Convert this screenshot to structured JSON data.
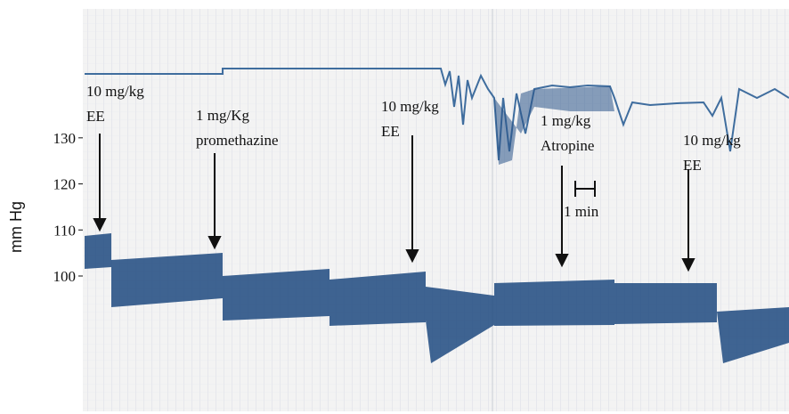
{
  "chart_data": {
    "type": "recording",
    "y_label": "mm Hg",
    "ylim": [
      71,
      158
    ],
    "yticks": [
      100,
      110,
      120,
      130
    ],
    "annotations": [
      {
        "dose": "10 mg/kg",
        "drug": "EE"
      },
      {
        "dose": "1 mg/Kg",
        "drug": "promethazine"
      },
      {
        "dose": "10 mg/kg",
        "drug": "EE"
      },
      {
        "dose": "1 mg/kg",
        "drug": "Atropine"
      },
      {
        "dose": "10 mg/kg",
        "drug": "EE"
      }
    ],
    "scale_bar": "1 min"
  }
}
